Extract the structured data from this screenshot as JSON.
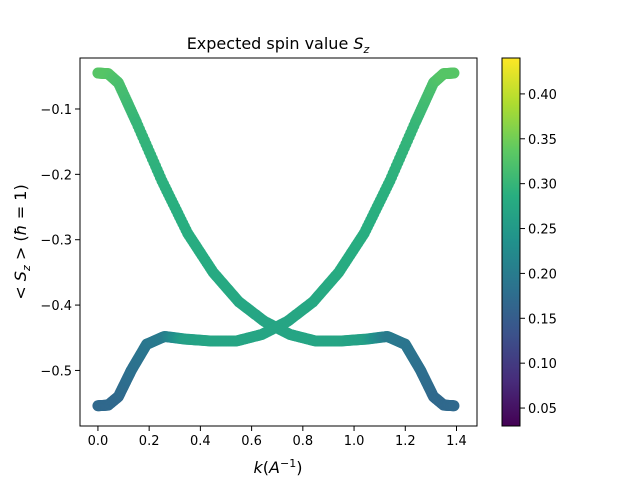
{
  "chart_data": {
    "type": "scatter",
    "title": "Expected spin value S_z",
    "xlabel": "k(A^-1)",
    "ylabel": "< S_z > (ħ = 1)",
    "xlim": [
      -0.07,
      1.48
    ],
    "ylim": [
      -0.585,
      -0.022
    ],
    "xticks": [
      0.0,
      0.2,
      0.4,
      0.6,
      0.8,
      1.0,
      1.2,
      1.4
    ],
    "yticks": [
      -0.5,
      -0.4,
      -0.3,
      -0.2,
      -0.1
    ],
    "grid": false,
    "colorbar": {
      "cmap": "viridis",
      "range": [
        0.03,
        0.44
      ],
      "ticks": [
        0.05,
        0.1,
        0.15,
        0.2,
        0.25,
        0.3,
        0.35,
        0.4
      ]
    },
    "series": [
      {
        "points": [
          {
            "x": 0.0,
            "y": -0.045,
            "c": 0.33
          },
          {
            "x": 0.04,
            "y": -0.046,
            "c": 0.33
          },
          {
            "x": 0.08,
            "y": -0.06,
            "c": 0.32
          },
          {
            "x": 0.15,
            "y": -0.12,
            "c": 0.3
          },
          {
            "x": 0.25,
            "y": -0.21,
            "c": 0.29
          },
          {
            "x": 0.35,
            "y": -0.29,
            "c": 0.285
          },
          {
            "x": 0.45,
            "y": -0.35,
            "c": 0.28
          },
          {
            "x": 0.55,
            "y": -0.395,
            "c": 0.275
          },
          {
            "x": 0.65,
            "y": -0.425,
            "c": 0.27
          },
          {
            "x": 0.75,
            "y": -0.445,
            "c": 0.27
          },
          {
            "x": 0.85,
            "y": -0.455,
            "c": 0.27
          },
          {
            "x": 0.95,
            "y": -0.455,
            "c": 0.27
          },
          {
            "x": 1.05,
            "y": -0.452,
            "c": 0.26
          },
          {
            "x": 1.13,
            "y": -0.448,
            "c": 0.2
          },
          {
            "x": 1.2,
            "y": -0.46,
            "c": 0.19
          },
          {
            "x": 1.26,
            "y": -0.5,
            "c": 0.18
          },
          {
            "x": 1.31,
            "y": -0.54,
            "c": 0.17
          },
          {
            "x": 1.35,
            "y": -0.553,
            "c": 0.17
          },
          {
            "x": 1.39,
            "y": -0.554,
            "c": 0.17
          }
        ]
      },
      {
        "points": [
          {
            "x": 0.0,
            "y": -0.554,
            "c": 0.17
          },
          {
            "x": 0.04,
            "y": -0.553,
            "c": 0.17
          },
          {
            "x": 0.08,
            "y": -0.54,
            "c": 0.17
          },
          {
            "x": 0.13,
            "y": -0.5,
            "c": 0.18
          },
          {
            "x": 0.19,
            "y": -0.46,
            "c": 0.19
          },
          {
            "x": 0.26,
            "y": -0.448,
            "c": 0.2
          },
          {
            "x": 0.34,
            "y": -0.452,
            "c": 0.26
          },
          {
            "x": 0.44,
            "y": -0.455,
            "c": 0.27
          },
          {
            "x": 0.54,
            "y": -0.455,
            "c": 0.27
          },
          {
            "x": 0.64,
            "y": -0.445,
            "c": 0.27
          },
          {
            "x": 0.74,
            "y": -0.425,
            "c": 0.27
          },
          {
            "x": 0.84,
            "y": -0.395,
            "c": 0.275
          },
          {
            "x": 0.94,
            "y": -0.35,
            "c": 0.28
          },
          {
            "x": 1.04,
            "y": -0.29,
            "c": 0.285
          },
          {
            "x": 1.14,
            "y": -0.21,
            "c": 0.29
          },
          {
            "x": 1.24,
            "y": -0.12,
            "c": 0.3
          },
          {
            "x": 1.31,
            "y": -0.06,
            "c": 0.32
          },
          {
            "x": 1.35,
            "y": -0.046,
            "c": 0.33
          },
          {
            "x": 1.39,
            "y": -0.045,
            "c": 0.33
          }
        ]
      }
    ]
  }
}
